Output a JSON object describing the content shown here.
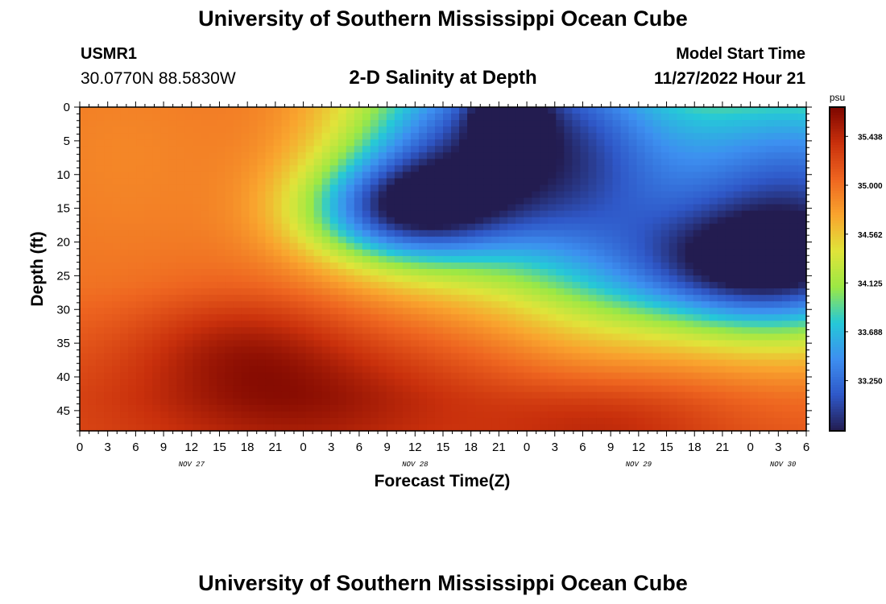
{
  "header": {
    "title": "University of Southern Mississippi Ocean Cube",
    "station_id": "USMR1",
    "station_coords": "30.0770N  88.5830W",
    "chart_title": "2-D Salinity at Depth",
    "model_label": "Model Start Time",
    "model_value": "11/27/2022 Hour 21"
  },
  "footer": {
    "title": "University of Southern Mississippi Ocean Cube"
  },
  "chart_data": {
    "type": "heatmap",
    "title": "2-D Salinity at Depth",
    "xlabel": "Forecast Time(Z)",
    "ylabel": "Depth (ft)",
    "x_tick_labels": [
      "0",
      "3",
      "6",
      "9",
      "12",
      "15",
      "18",
      "21",
      "0",
      "3",
      "6",
      "9",
      "12",
      "15",
      "18",
      "21",
      "0",
      "3",
      "6",
      "9",
      "12",
      "15",
      "18",
      "21",
      "0",
      "3",
      "6"
    ],
    "date_labels": [
      "NOV 27",
      "NOV 28",
      "NOV 29",
      "NOV 30"
    ],
    "y_tick_labels": [
      "0",
      "5",
      "10",
      "15",
      "20",
      "25",
      "30",
      "35",
      "40",
      "45"
    ],
    "ylim": [
      0,
      48
    ],
    "colorbar": {
      "unit": "psu",
      "tick_labels": [
        "35.438",
        "35.000",
        "34.562",
        "34.125",
        "33.688",
        "33.250"
      ],
      "range": [
        32.8,
        35.7
      ],
      "colors": [
        "#231c50",
        "#2f58c8",
        "#3d8ff0",
        "#25c8d8",
        "#9ce844",
        "#e0e43a",
        "#f9a42e",
        "#ee6520",
        "#c9300c",
        "#7c0600"
      ]
    }
  }
}
